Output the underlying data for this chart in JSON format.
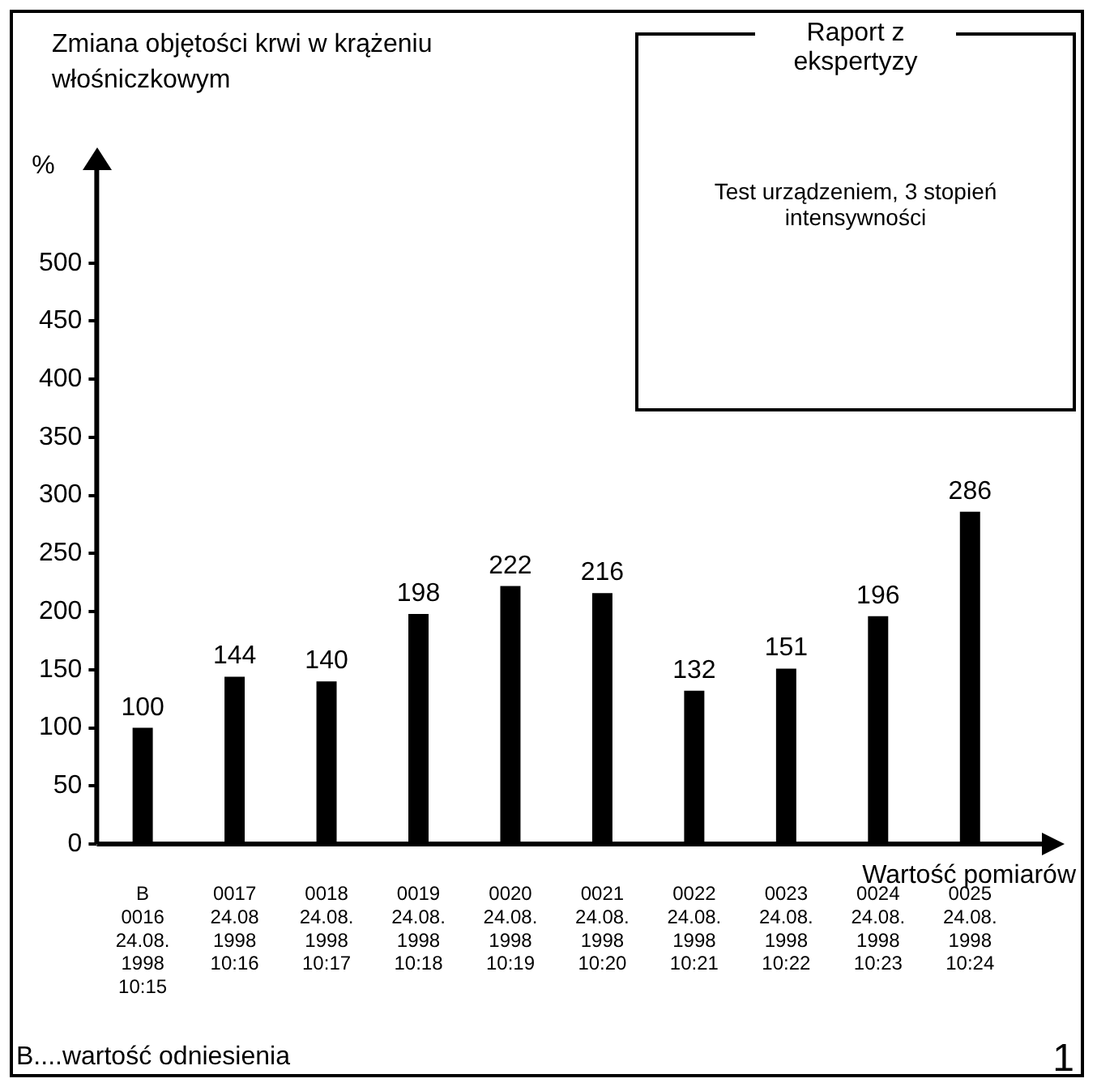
{
  "chart_data": {
    "type": "bar",
    "title": "Zmiana objętości krwi w krążeniu włośniczkowym",
    "ylabel": "%",
    "xlabel": "Wartość pomiarów",
    "categories": [
      "B\n0016\n24.08.\n1998\n10:15",
      "0017\n24.08\n1998\n10:16",
      "0018\n24.08.\n1998\n10:17",
      "0019\n24.08.\n1998\n10:18",
      "0020\n24.08.\n1998\n10:19",
      "0021\n24.08.\n1998\n10:20",
      "0022\n24.08.\n1998\n10:21",
      "0023\n24.08.\n1998\n10:22",
      "0024\n24.08.\n1998\n10:23",
      "0025\n24.08.\n1998\n10:24"
    ],
    "values": [
      100,
      144,
      140,
      198,
      222,
      216,
      132,
      151,
      196,
      286
    ],
    "color": "#000000",
    "data_labels": true,
    "ylim": [
      0,
      580
    ],
    "yticks": [
      0,
      50,
      100,
      150,
      200,
      250,
      300,
      350,
      400,
      450,
      500
    ],
    "annotations": [
      "Raport z ekspertyzy",
      "Test urządzeniem, 3 stopień intensywności",
      "B....wartość odniesienia",
      "1"
    ]
  }
}
